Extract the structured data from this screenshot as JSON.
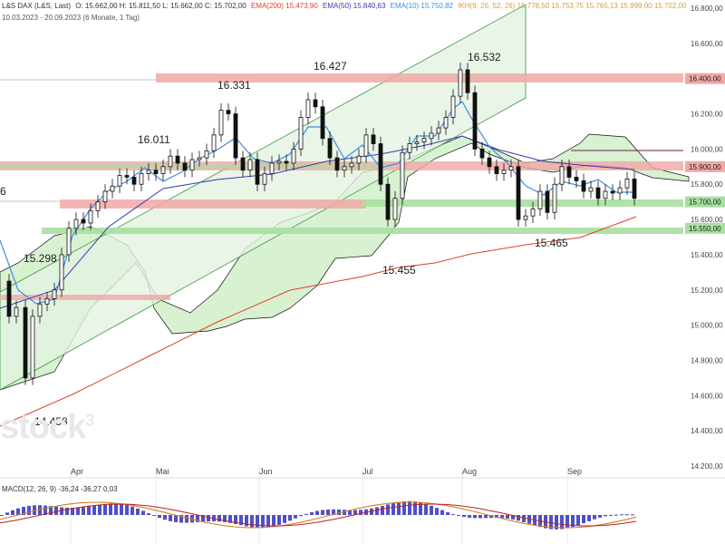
{
  "header": {
    "instrument": "L&S DAX (L&S, Last)",
    "ohlc": "O: 15.662,00  H: 15.811,50  L: 15.662,00  C: 15.702,00",
    "ema200": "EMA(200)  15.473,90",
    "ema50": "EMA(50)  15.840,63",
    "ema10": "EMA(10)  15.750,82",
    "ikh": "IKH(9, 26, 52, 26)  15.778,50  15.753,75  15.765,13  15.999,00  15.702,00",
    "range": "10.03.2023 - 20.09.2023  (6 Monate, 1 Tag)"
  },
  "macd_header": "MACD(12, 26, 9)  -36,24  -36,27  0,03",
  "watermark": "stock",
  "colors": {
    "ema200": "#e0402c",
    "ema50": "#3b3bb0",
    "ema10": "#3f8ee0",
    "cloud": "#c8ecc0",
    "resistance": "#e88a88",
    "support": "#8fd88f",
    "channel": "#bfe6bf"
  },
  "chart_data": {
    "type": "candlestick",
    "ylim": [
      14200,
      16800
    ],
    "y_ticks": [
      "16.800,00",
      "16.600,00",
      "16.400,00",
      "16.200,00",
      "16.000,00",
      "15.800,00",
      "15.600,00",
      "15.400,00",
      "15.200,00",
      "15.000,00",
      "14.800,00",
      "14.600,00",
      "14.400,00",
      "14.200,00"
    ],
    "x_months": [
      "Apr",
      "Mai",
      "Jun",
      "Jul",
      "Aug",
      "Sep"
    ],
    "price_labels": [
      "16.400,00",
      "15.900,00",
      "15.700,00",
      "15.550,00"
    ],
    "annotations": [
      "16.532",
      "16.427",
      "16.331",
      "16.011",
      "15.298",
      "15.455",
      "15.465",
      "14.458",
      "6"
    ],
    "ema_values_last": {
      "ema200": 15473.9,
      "ema50": 15840.63,
      "ema10": 15750.82
    },
    "horizontal_levels": [
      {
        "label": "16.400,00",
        "value": 16400,
        "kind": "resistance"
      },
      {
        "label": "15.900,00",
        "value": 15900,
        "kind": "resistance"
      },
      {
        "label": "15.700,00",
        "value": 15700,
        "kind": "support"
      },
      {
        "label": "15.550,00",
        "value": 15550,
        "kind": "support"
      }
    ]
  }
}
